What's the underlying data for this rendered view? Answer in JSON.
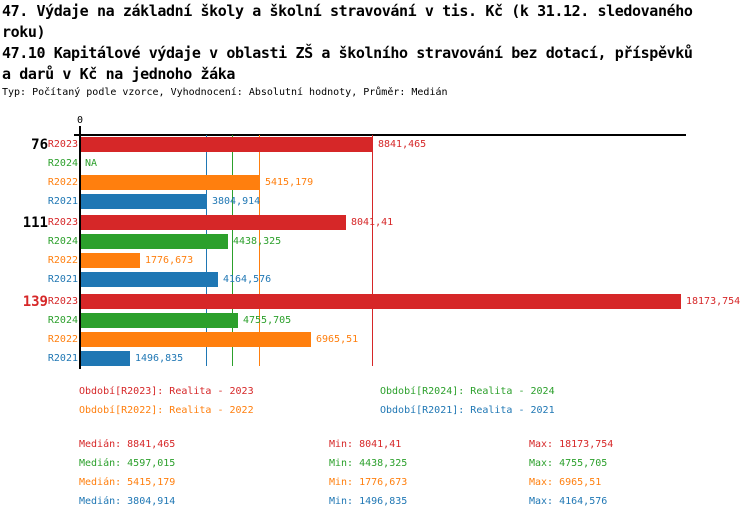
{
  "title": {
    "line1": "47. Výdaje na základní školy a školní stravování v tis. Kč (k 31.12. sledovaného",
    "line2": "roku)",
    "line3": "47.10 Kapitálové výdaje v oblasti ZŠ a školního stravování bez dotací, příspěvků",
    "line4": "a darů v Kč na jednoho žáka",
    "subtitle": "Typ: Počítaný podle vzorce, Vyhodnocení: Absolutní hodnoty, Průměr: Medián"
  },
  "colors": {
    "R2023": "#d62728",
    "R2024": "#2ca02c",
    "R2022": "#ff7f0e",
    "R2021": "#1f77b4",
    "axis": "#000000",
    "text": "#000000"
  },
  "chart_data": {
    "type": "bar",
    "orientation": "horizontal",
    "axis_zero_label": "0",
    "x_max": 18173.754,
    "series_order": [
      "R2023",
      "R2024",
      "R2022",
      "R2021"
    ],
    "groups": [
      {
        "label": "76",
        "highlight": false,
        "rows": [
          {
            "series": "R2023",
            "value": 8841.465,
            "display": "8841,465"
          },
          {
            "series": "R2024",
            "value": null,
            "display": "NA"
          },
          {
            "series": "R2022",
            "value": 5415.179,
            "display": "5415,179"
          },
          {
            "series": "R2021",
            "value": 3804.914,
            "display": "3804,914"
          }
        ]
      },
      {
        "label": "111",
        "highlight": false,
        "rows": [
          {
            "series": "R2023",
            "value": 8041.41,
            "display": "8041,41"
          },
          {
            "series": "R2024",
            "value": 4438.325,
            "display": "4438,325"
          },
          {
            "series": "R2022",
            "value": 1776.673,
            "display": "1776,673"
          },
          {
            "series": "R2021",
            "value": 4164.576,
            "display": "4164,576"
          }
        ]
      },
      {
        "label": "139",
        "highlight": true,
        "rows": [
          {
            "series": "R2023",
            "value": 18173.754,
            "display": "18173,754"
          },
          {
            "series": "R2024",
            "value": 4755.705,
            "display": "4755,705"
          },
          {
            "series": "R2022",
            "value": 6965.51,
            "display": "6965,51"
          },
          {
            "series": "R2021",
            "value": 1496.835,
            "display": "1496,835"
          }
        ]
      }
    ],
    "median_lines": [
      {
        "series": "R2021",
        "value": 3804.914
      },
      {
        "series": "R2024",
        "value": 4597.015
      },
      {
        "series": "R2022",
        "value": 5415.179
      },
      {
        "series": "R2023",
        "value": 8841.465
      }
    ]
  },
  "legend": {
    "columns": [
      [
        {
          "series": "R2023",
          "text": "Období[R2023]: Realita - 2023"
        },
        {
          "series": "R2022",
          "text": "Období[R2022]: Realita - 2022"
        }
      ],
      [
        {
          "series": "R2024",
          "text": "Období[R2024]: Realita - 2024"
        },
        {
          "series": "R2021",
          "text": "Období[R2021]: Realita - 2021"
        }
      ]
    ]
  },
  "stats": {
    "median_label": "Medián:",
    "min_label": "Min:",
    "max_label": "Max:",
    "rows": [
      {
        "series": "R2023",
        "median": "8841,465",
        "min": "8041,41",
        "max": "18173,754"
      },
      {
        "series": "R2024",
        "median": "4597,015",
        "min": "4438,325",
        "max": "4755,705"
      },
      {
        "series": "R2022",
        "median": "5415,179",
        "min": "1776,673",
        "max": "6965,51"
      },
      {
        "series": "R2021",
        "median": "3804,914",
        "min": "1496,835",
        "max": "4164,576"
      }
    ]
  }
}
